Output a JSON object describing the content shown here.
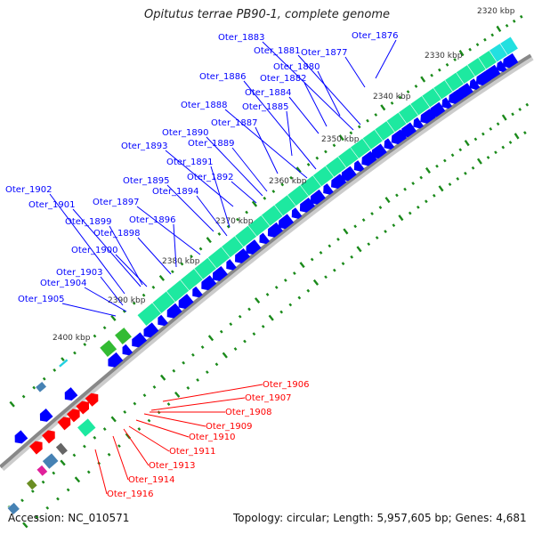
{
  "title": "Opitutus terrae PB90-1, complete genome",
  "footer": {
    "accession": "Accession: NC_010571",
    "summary": "Topology: circular; Length: 5,957,605 bp; Genes: 4,681"
  },
  "scale_labels": [
    "2320 kbp",
    "2330 kbp",
    "2340 kbp",
    "2350 kbp",
    "2360 kbp",
    "2370 kbp",
    "2380 kbp",
    "2390 kbp",
    "2400 kbp"
  ],
  "forward_gene_labels": [
    "Oter_1876",
    "Oter_1883",
    "Oter_1881",
    "Oter_1877",
    "Oter_1880",
    "Oter_1886",
    "Oter_1882",
    "Oter_1884",
    "Oter_1888",
    "Oter_1885",
    "Oter_1887",
    "Oter_1890",
    "Oter_1889",
    "Oter_1893",
    "Oter_1891",
    "Oter_1892",
    "Oter_1895",
    "Oter_1894",
    "Oter_1902",
    "Oter_1901",
    "Oter_1897",
    "Oter_1899",
    "Oter_1896",
    "Oter_1898",
    "Oter_1900",
    "Oter_1903",
    "Oter_1904",
    "Oter_1905"
  ],
  "reverse_gene_labels": [
    "Oter_1906",
    "Oter_1907",
    "Oter_1908",
    "Oter_1909",
    "Oter_1910",
    "Oter_1911",
    "Oter_1913",
    "Oter_1914",
    "Oter_1916"
  ],
  "colors": {
    "forward": "#0000ff",
    "reverse": "#ff0000",
    "backbone": "#888888",
    "green": "#1de9a0",
    "ticks": "#1a8a1a"
  }
}
